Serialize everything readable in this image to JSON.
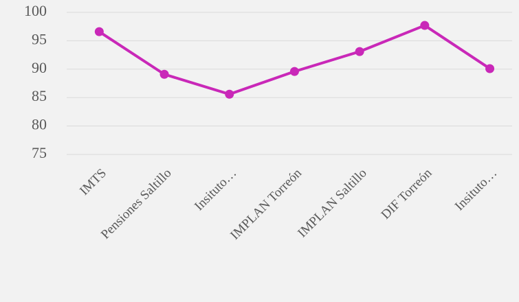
{
  "chart_data": {
    "type": "line",
    "categories": [
      "IMTS",
      "Pensiones Saltillo",
      "Insituto…",
      "IMPLAN Torreón",
      "IMPLAN Saltillo",
      "DIF Torreón",
      "Insituto…"
    ],
    "values": [
      96.6,
      89.1,
      85.6,
      89.6,
      93.1,
      97.7,
      90.1
    ],
    "color": "#c928b8",
    "ylim": [
      75,
      100
    ],
    "yticks": [
      75,
      80,
      85,
      90,
      95,
      100
    ],
    "grid": true
  }
}
